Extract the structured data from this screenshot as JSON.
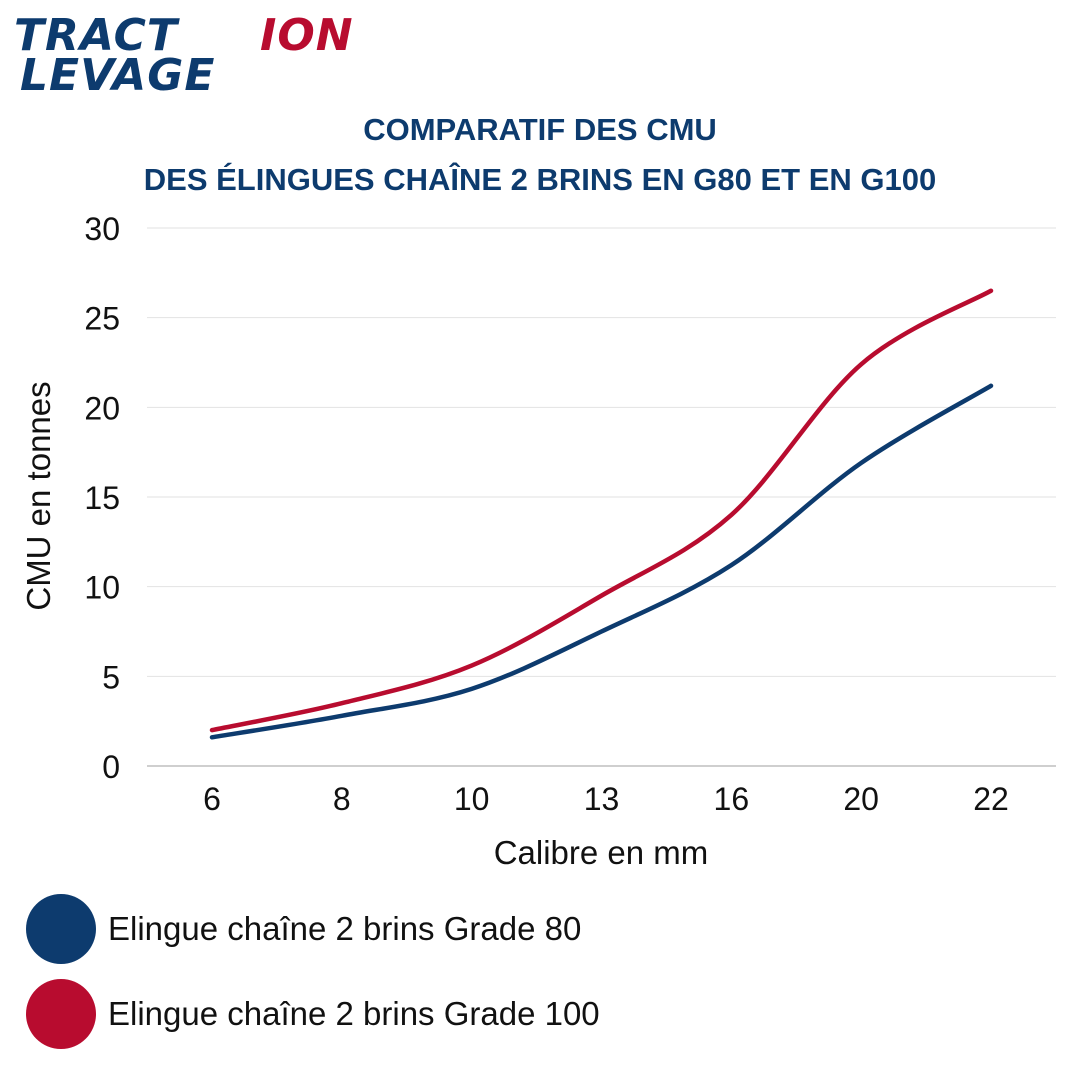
{
  "logo": {
    "line1_part1": "TRACT",
    "line1_part2": "ION",
    "line2": "LEVAGE",
    "color_blue": "#0d3b6e",
    "color_red": "#b80c2f"
  },
  "title_line1": "COMPARATIF DES CMU",
  "title_line2": "DES ÉLINGUES CHAÎNE 2 BRINS EN G80 ET EN G100",
  "chart_data": {
    "type": "line",
    "title": "COMPARATIF DES CMU DES ÉLINGUES CHAÎNE 2 BRINS EN G80 ET EN G100",
    "xlabel": "Calibre en mm",
    "ylabel": "CMU en tonnes",
    "categories": [
      "6",
      "8",
      "10",
      "13",
      "16",
      "20",
      "22"
    ],
    "ylim": [
      0,
      30
    ],
    "yticks": [
      0,
      5,
      10,
      15,
      20,
      25,
      30
    ],
    "grid": true,
    "legend_position": "bottom",
    "series": [
      {
        "name": "Elingue chaîne 2 brins Grade 80",
        "color": "#0d3b6e",
        "values": [
          1.6,
          2.8,
          4.3,
          7.5,
          11.2,
          16.9,
          21.2
        ]
      },
      {
        "name": "Elingue chaîne 2 brins Grade 100",
        "color": "#b80c2f",
        "values": [
          2.0,
          3.5,
          5.6,
          9.5,
          14.0,
          22.4,
          26.5
        ]
      }
    ]
  }
}
